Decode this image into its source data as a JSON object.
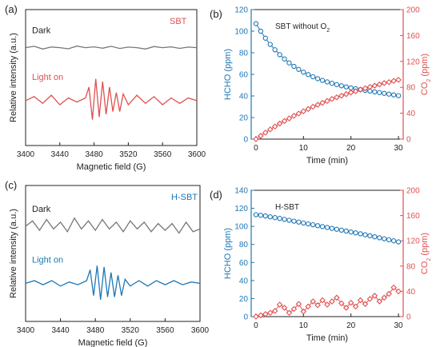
{
  "colors": {
    "blue": "#1f77b4",
    "red": "#e05050",
    "gray": "#777777",
    "axis": "#222222"
  },
  "panel_labels": {
    "a": "(a)",
    "b": "(b)",
    "c": "(c)",
    "d": "(d)"
  },
  "chart_data": [
    {
      "id": "a",
      "type": "line",
      "title": "",
      "tag": "SBT",
      "xlabel": "Magnetic field (G)",
      "ylabel": "Relative intensity (a.u.)",
      "xlim": [
        3400,
        3600
      ],
      "xticks": [
        3400,
        3440,
        3480,
        3520,
        3560,
        3600
      ],
      "yticks_shown": false,
      "series": [
        {
          "name": "Dark",
          "color": "#777777",
          "baseline": 0.72,
          "x": [
            3400,
            3410,
            3420,
            3430,
            3440,
            3450,
            3460,
            3470,
            3480,
            3490,
            3500,
            3510,
            3520,
            3530,
            3540,
            3550,
            3560,
            3570,
            3580,
            3590,
            3600
          ],
          "y": [
            0.0,
            0.01,
            -0.01,
            0.005,
            0.0,
            -0.008,
            0.012,
            0.0,
            0.006,
            -0.004,
            0.01,
            -0.006,
            0.004,
            0.0,
            -0.01,
            0.008,
            0.0,
            0.006,
            -0.005,
            0.004,
            0.0
          ]
        },
        {
          "name": "Light on",
          "color": "#e05050",
          "baseline": 0.33,
          "x": [
            3400,
            3410,
            3420,
            3430,
            3440,
            3450,
            3460,
            3470,
            3474,
            3478,
            3482,
            3486,
            3490,
            3494,
            3498,
            3502,
            3506,
            3510,
            3514,
            3520,
            3530,
            3540,
            3550,
            3560,
            3570,
            3580,
            3590,
            3600
          ],
          "y": [
            0.0,
            0.03,
            -0.02,
            0.04,
            -0.03,
            0.02,
            -0.01,
            0.02,
            0.1,
            -0.14,
            0.16,
            -0.12,
            0.14,
            -0.1,
            0.1,
            -0.08,
            0.06,
            -0.08,
            0.05,
            -0.03,
            0.04,
            -0.02,
            0.03,
            -0.03,
            0.02,
            -0.02,
            0.02,
            0.0
          ]
        }
      ]
    },
    {
      "id": "b",
      "type": "line",
      "title": "SBT without O2",
      "xlabel": "Time (min)",
      "ylabel_left": "HCHO (ppm)",
      "ylabel_right": "CO2 (ppm)",
      "xlim": [
        -1,
        31
      ],
      "xticks": [
        0,
        10,
        20,
        30
      ],
      "ylim_left": [
        0,
        120
      ],
      "yticks_left": [
        0,
        20,
        40,
        60,
        80,
        100,
        120
      ],
      "ylim_right": [
        0,
        200
      ],
      "yticks_right": [
        0,
        40,
        80,
        120,
        160,
        200
      ],
      "series": [
        {
          "name": "HCHO",
          "axis": "left",
          "color": "#1f77b4",
          "marker": "circle",
          "x": [
            0,
            1,
            2,
            3,
            4,
            5,
            6,
            7,
            8,
            9,
            10,
            11,
            12,
            13,
            14,
            15,
            16,
            17,
            18,
            19,
            20,
            21,
            22,
            23,
            24,
            25,
            26,
            27,
            28,
            29,
            30
          ],
          "y": [
            107,
            100,
            93.5,
            87.8,
            82.8,
            78.2,
            74.2,
            70.6,
            67.4,
            64.6,
            62.0,
            59.8,
            57.8,
            56.0,
            54.4,
            53.0,
            51.7,
            50.5,
            49.4,
            48.4,
            47.5,
            46.7,
            45.9,
            45.2,
            44.5,
            43.8,
            43.1,
            42.4,
            41.7,
            41.0,
            40.3
          ]
        },
        {
          "name": "CO2",
          "axis": "right",
          "color": "#e05050",
          "marker": "diamond",
          "x": [
            0,
            1,
            2,
            3,
            4,
            5,
            6,
            7,
            8,
            9,
            10,
            11,
            12,
            13,
            14,
            15,
            16,
            17,
            18,
            19,
            20,
            21,
            22,
            23,
            24,
            25,
            26,
            27,
            28,
            29,
            30
          ],
          "y": [
            0,
            5,
            10,
            15,
            19.5,
            24,
            28,
            32,
            36,
            39.5,
            43,
            46.5,
            50,
            53,
            56,
            59,
            62,
            64.5,
            67,
            69.5,
            72,
            74,
            76.5,
            78.5,
            80.5,
            82.5,
            84.5,
            86.5,
            88,
            90,
            91.5
          ]
        }
      ]
    },
    {
      "id": "c",
      "type": "line",
      "title": "",
      "tag": "H-SBT",
      "xlabel": "Magnetic field (G)",
      "ylabel": "Relative intensity (a.u.)",
      "xlim": [
        3400,
        3600
      ],
      "xticks": [
        3400,
        3440,
        3480,
        3520,
        3560,
        3600
      ],
      "yticks_shown": false,
      "series": [
        {
          "name": "Dark",
          "color": "#777777",
          "baseline": 0.7,
          "x": [
            3400,
            3408,
            3416,
            3424,
            3432,
            3440,
            3448,
            3456,
            3464,
            3472,
            3480,
            3488,
            3496,
            3504,
            3512,
            3520,
            3528,
            3536,
            3544,
            3552,
            3560,
            3568,
            3576,
            3584,
            3592,
            3600
          ],
          "y": [
            0.0,
            0.04,
            -0.03,
            0.05,
            -0.02,
            0.03,
            -0.04,
            0.06,
            -0.02,
            0.04,
            -0.03,
            0.05,
            -0.02,
            0.03,
            -0.04,
            0.04,
            -0.02,
            0.03,
            -0.04,
            0.02,
            -0.03,
            0.02,
            -0.05,
            0.03,
            -0.04,
            -0.02
          ]
        },
        {
          "name": "Light on",
          "color": "#1f77b4",
          "baseline": 0.28,
          "x": [
            3400,
            3410,
            3420,
            3430,
            3440,
            3450,
            3460,
            3470,
            3474,
            3478,
            3482,
            3486,
            3490,
            3494,
            3498,
            3502,
            3506,
            3510,
            3514,
            3520,
            3530,
            3540,
            3550,
            3560,
            3570,
            3580,
            3590,
            3600
          ],
          "y": [
            0.0,
            0.02,
            -0.01,
            0.02,
            -0.02,
            0.01,
            -0.01,
            0.02,
            0.1,
            -0.09,
            0.13,
            -0.12,
            0.12,
            -0.1,
            0.08,
            -0.1,
            0.06,
            -0.09,
            0.03,
            -0.02,
            0.02,
            -0.02,
            0.02,
            -0.01,
            0.02,
            -0.01,
            0.01,
            0.0
          ]
        }
      ]
    },
    {
      "id": "d",
      "type": "line",
      "title": "H-SBT",
      "xlabel": "Time (min)",
      "ylabel_left": "HCHO (ppm)",
      "ylabel_right": "CO2 (ppm)",
      "xlim": [
        -1,
        31
      ],
      "xticks": [
        0,
        10,
        20,
        30
      ],
      "ylim_left": [
        0,
        140
      ],
      "yticks_left": [
        0,
        20,
        40,
        60,
        80,
        100,
        120,
        140
      ],
      "ylim_right": [
        0,
        200
      ],
      "yticks_right": [
        0,
        40,
        80,
        120,
        160,
        200
      ],
      "series": [
        {
          "name": "HCHO",
          "axis": "left",
          "color": "#1f77b4",
          "marker": "circle",
          "x": [
            0,
            1,
            2,
            3,
            4,
            5,
            6,
            7,
            8,
            9,
            10,
            11,
            12,
            13,
            14,
            15,
            16,
            17,
            18,
            19,
            20,
            21,
            22,
            23,
            24,
            25,
            26,
            27,
            28,
            29,
            30
          ],
          "y": [
            113,
            112.3,
            111.5,
            110.6,
            109.7,
            108.8,
            107.8,
            106.8,
            105.8,
            104.8,
            103.8,
            102.8,
            101.8,
            100.8,
            99.8,
            98.8,
            97.8,
            96.8,
            95.8,
            94.8,
            93.8,
            92.8,
            91.8,
            90.7,
            89.6,
            88.5,
            87.4,
            86.3,
            85.2,
            84.0,
            82.8
          ]
        },
        {
          "name": "CO2",
          "axis": "right",
          "color": "#e05050",
          "marker": "diamond",
          "x": [
            0,
            1,
            2,
            3,
            4,
            5,
            6,
            7,
            8,
            9,
            10,
            11,
            12,
            13,
            14,
            15,
            16,
            17,
            18,
            19,
            20,
            21,
            22,
            23,
            24,
            25,
            26,
            27,
            28,
            29,
            30
          ],
          "y": [
            0,
            2,
            4,
            6,
            9,
            19,
            14,
            6,
            12,
            20,
            8,
            16,
            24,
            18,
            26,
            19,
            24,
            30,
            21,
            14,
            22,
            16,
            26,
            20,
            28,
            33,
            24,
            30,
            36,
            46,
            40
          ]
        }
      ]
    }
  ]
}
